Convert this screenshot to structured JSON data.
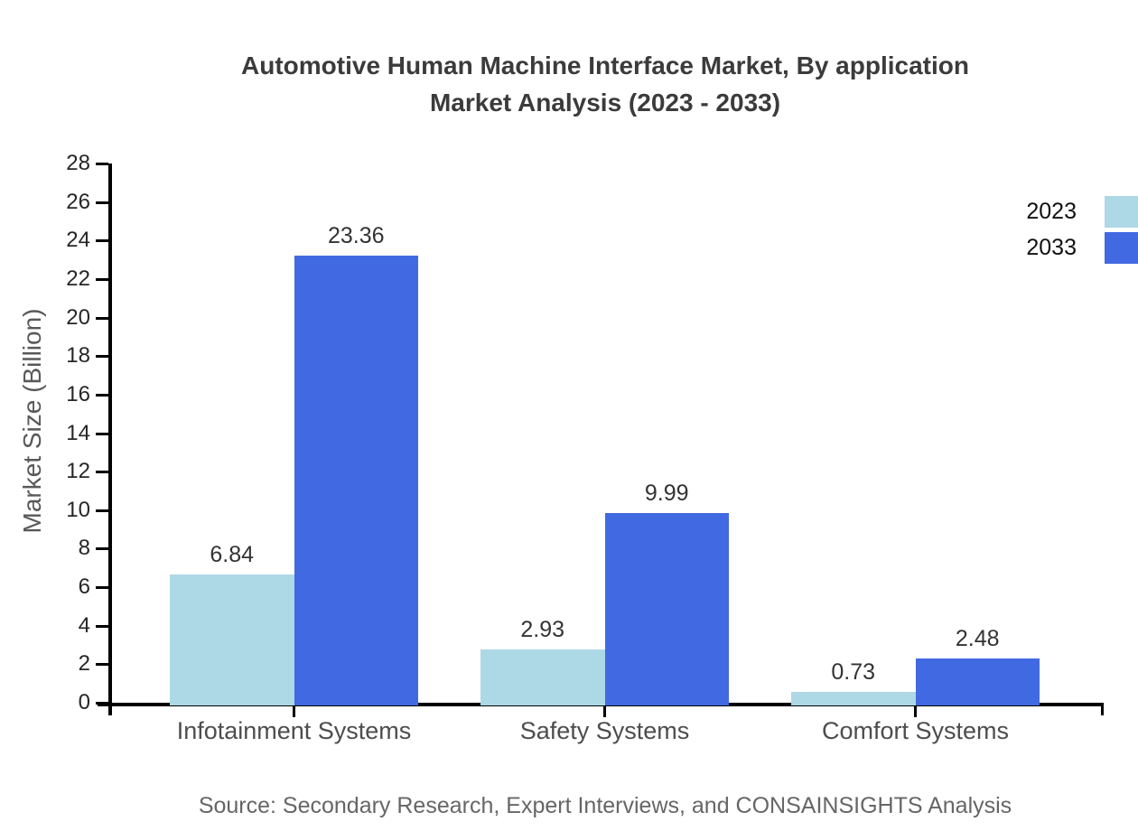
{
  "title": {
    "line1": "Automotive Human Machine Interface Market, By application",
    "line2": "Market Analysis (2023 - 2033)"
  },
  "chart_data": {
    "type": "bar",
    "categories": [
      "Infotainment Systems",
      "Safety Systems",
      "Comfort Systems"
    ],
    "series": [
      {
        "name": "2023",
        "color": "#ADD8E6",
        "values": [
          6.84,
          2.93,
          0.73
        ]
      },
      {
        "name": "2033",
        "color": "#4169E1",
        "values": [
          23.36,
          9.99,
          2.48
        ]
      }
    ],
    "value_labels": {
      "2023": [
        "6.84",
        "2.93",
        "0.73"
      ],
      "2033": [
        "23.36",
        "9.99",
        "2.48"
      ]
    },
    "title": "Automotive Human Machine Interface Market, By application Market Analysis (2023 - 2033)",
    "xlabel": "",
    "ylabel": "Market Size (Billion)",
    "ylim": [
      0,
      28
    ],
    "ytick_step": 2,
    "grid": false,
    "legend_position": "right-top",
    "background": "#ffffff",
    "axis_color": "#000000"
  },
  "source": "Source: Secondary Research, Expert Interviews, and CONSAINSIGHTS Analysis"
}
